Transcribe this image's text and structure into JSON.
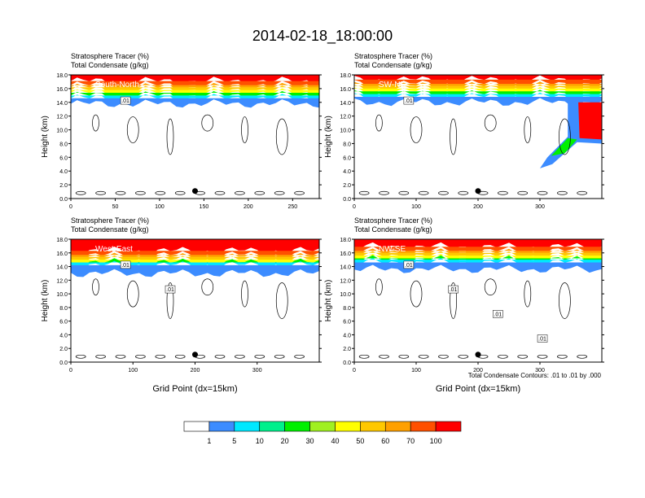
{
  "title": "2014-02-18_18:00:00",
  "footnote": "Total Condensate Contours: .01 to .01 by .000",
  "colorbar": {
    "labels": [
      "1",
      "5",
      "10",
      "20",
      "30",
      "40",
      "50",
      "60",
      "70",
      "100"
    ],
    "colors": [
      "#ffffff",
      "#3c8cff",
      "#00e8ff",
      "#00f08c",
      "#00f000",
      "#a0f020",
      "#ffff00",
      "#ffc800",
      "#ffa000",
      "#ff5000",
      "#ff0000"
    ]
  },
  "chart_data": [
    {
      "type": "heatmap",
      "panel_label": "South-North",
      "title_lines": [
        "Stratosphere Tracer   (%)",
        "Total Condensate   (g/kg)"
      ],
      "ylabel": "Height (km)",
      "xlabel": "",
      "xlim": [
        0,
        280
      ],
      "xticks": [
        0,
        50,
        100,
        150,
        200,
        250
      ],
      "ylim": [
        0,
        18
      ],
      "yticks": [
        "0.0",
        "2.0",
        "4.0",
        "6.0",
        "8.0",
        "10.0",
        "12.0",
        "14.0",
        "16.0",
        "18.0"
      ],
      "marker_x": 140,
      "contour_labels": [
        ".01"
      ]
    },
    {
      "type": "heatmap",
      "panel_label": "SW-NE",
      "title_lines": [
        "Stratosphere Tracer   (%)",
        "Total Condensate   (g/kg)"
      ],
      "ylabel": "Height (km)",
      "xlabel": "",
      "xlim": [
        0,
        400
      ],
      "xticks": [
        0,
        100,
        200,
        300
      ],
      "ylim": [
        0,
        18
      ],
      "yticks": [
        "0.0",
        "2.0",
        "4.0",
        "6.0",
        "8.0",
        "10.0",
        "12.0",
        "14.0",
        "16.0",
        "18.0"
      ],
      "marker_x": 200,
      "contour_labels": [
        ".01"
      ]
    },
    {
      "type": "heatmap",
      "panel_label": "West-East",
      "title_lines": [
        "Stratosphere Tracer   (%)",
        "Total Condensate   (g/kg)"
      ],
      "ylabel": "Height (km)",
      "xlabel": "Grid Point (dx=15km)",
      "xlim": [
        0,
        400
      ],
      "xticks": [
        0,
        100,
        200,
        300
      ],
      "ylim": [
        0,
        18
      ],
      "yticks": [
        "0.0",
        "2.0",
        "4.0",
        "6.0",
        "8.0",
        "10.0",
        "12.0",
        "14.0",
        "16.0",
        "18.0"
      ],
      "marker_x": 200,
      "contour_labels": [
        ".01",
        ".01"
      ]
    },
    {
      "type": "heatmap",
      "panel_label": "NW-SE",
      "title_lines": [
        "Stratosphere Tracer   (%)",
        "Total Condensate   (g/kg)"
      ],
      "ylabel": "Height (km)",
      "xlabel": "Grid Point (dx=15km)",
      "xlim": [
        0,
        400
      ],
      "xticks": [
        0,
        100,
        200,
        300
      ],
      "ylim": [
        0,
        18
      ],
      "yticks": [
        "0.0",
        "2.0",
        "4.0",
        "6.0",
        "8.0",
        "10.0",
        "12.0",
        "14.0",
        "16.0",
        "18.0"
      ],
      "marker_x": 200,
      "contour_labels": [
        ".01",
        ".01",
        ".01",
        ".01"
      ]
    }
  ]
}
